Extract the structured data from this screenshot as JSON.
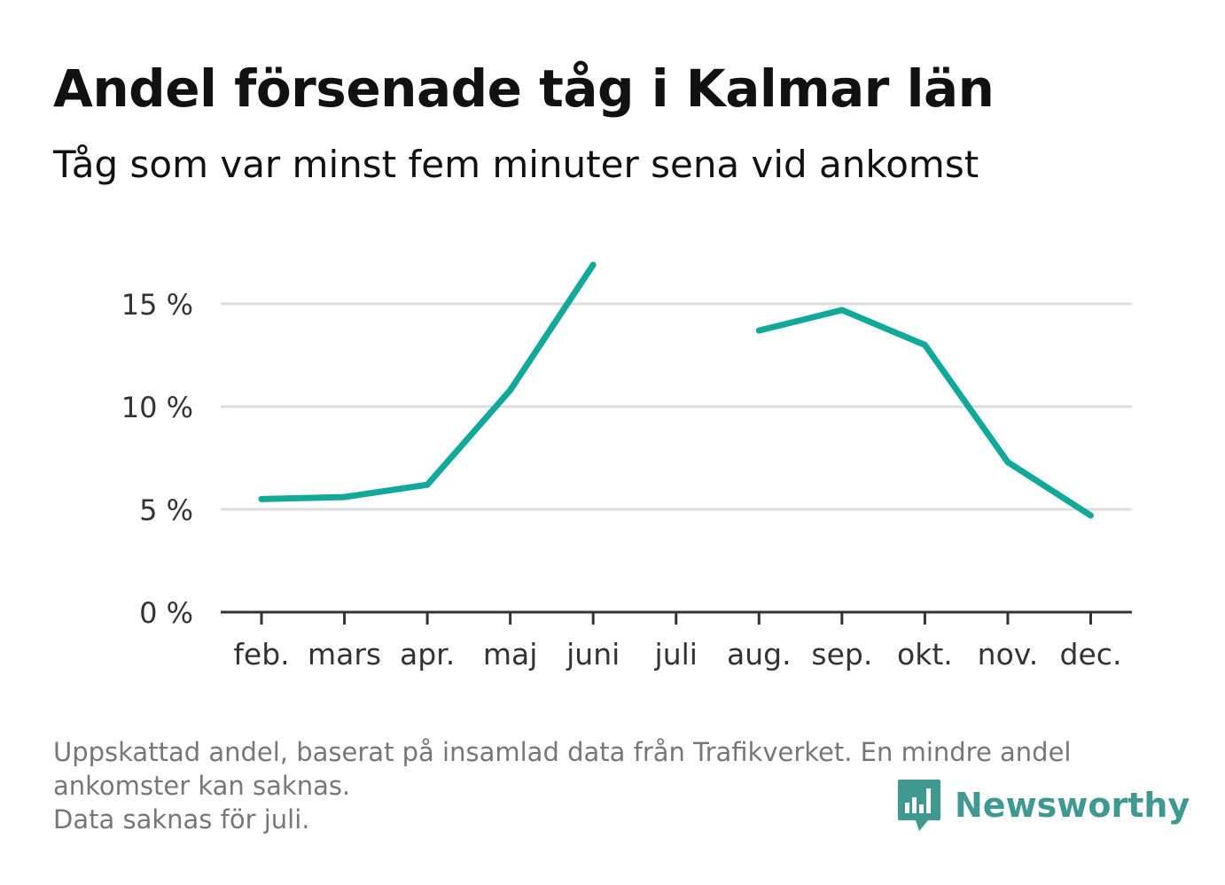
{
  "header": {
    "title": "Andel försenade tåg i Kalmar län",
    "subtitle": "Tåg som var minst fem minuter sena vid ankomst"
  },
  "chart_data": {
    "type": "line",
    "categories": [
      "feb.",
      "mars",
      "apr.",
      "maj",
      "juni",
      "juli",
      "aug.",
      "sep.",
      "okt.",
      "nov.",
      "dec."
    ],
    "series": [
      {
        "values": [
          5.5,
          5.6,
          6.2,
          10.8,
          16.9,
          null,
          13.7,
          14.7,
          13.0,
          7.3,
          4.7
        ],
        "color": "#12a89a"
      }
    ],
    "y_ticks": [
      0,
      5,
      10,
      15
    ],
    "y_tick_labels": [
      "0 %",
      "5 %",
      "10 %",
      "15 %"
    ],
    "ylim": [
      0,
      18
    ],
    "grid": true,
    "xlabel": "",
    "ylabel": ""
  },
  "footnote": {
    "line1": "Uppskattad andel, baserat på insamlad data från Trafikverket. En mindre andel",
    "line2": "ankomster kan saknas.",
    "line3": "Data saknas för juli."
  },
  "brand": {
    "name": "Newsworthy",
    "icon": "bar-chart-speech-bubble-icon",
    "color": "#3f9990"
  }
}
